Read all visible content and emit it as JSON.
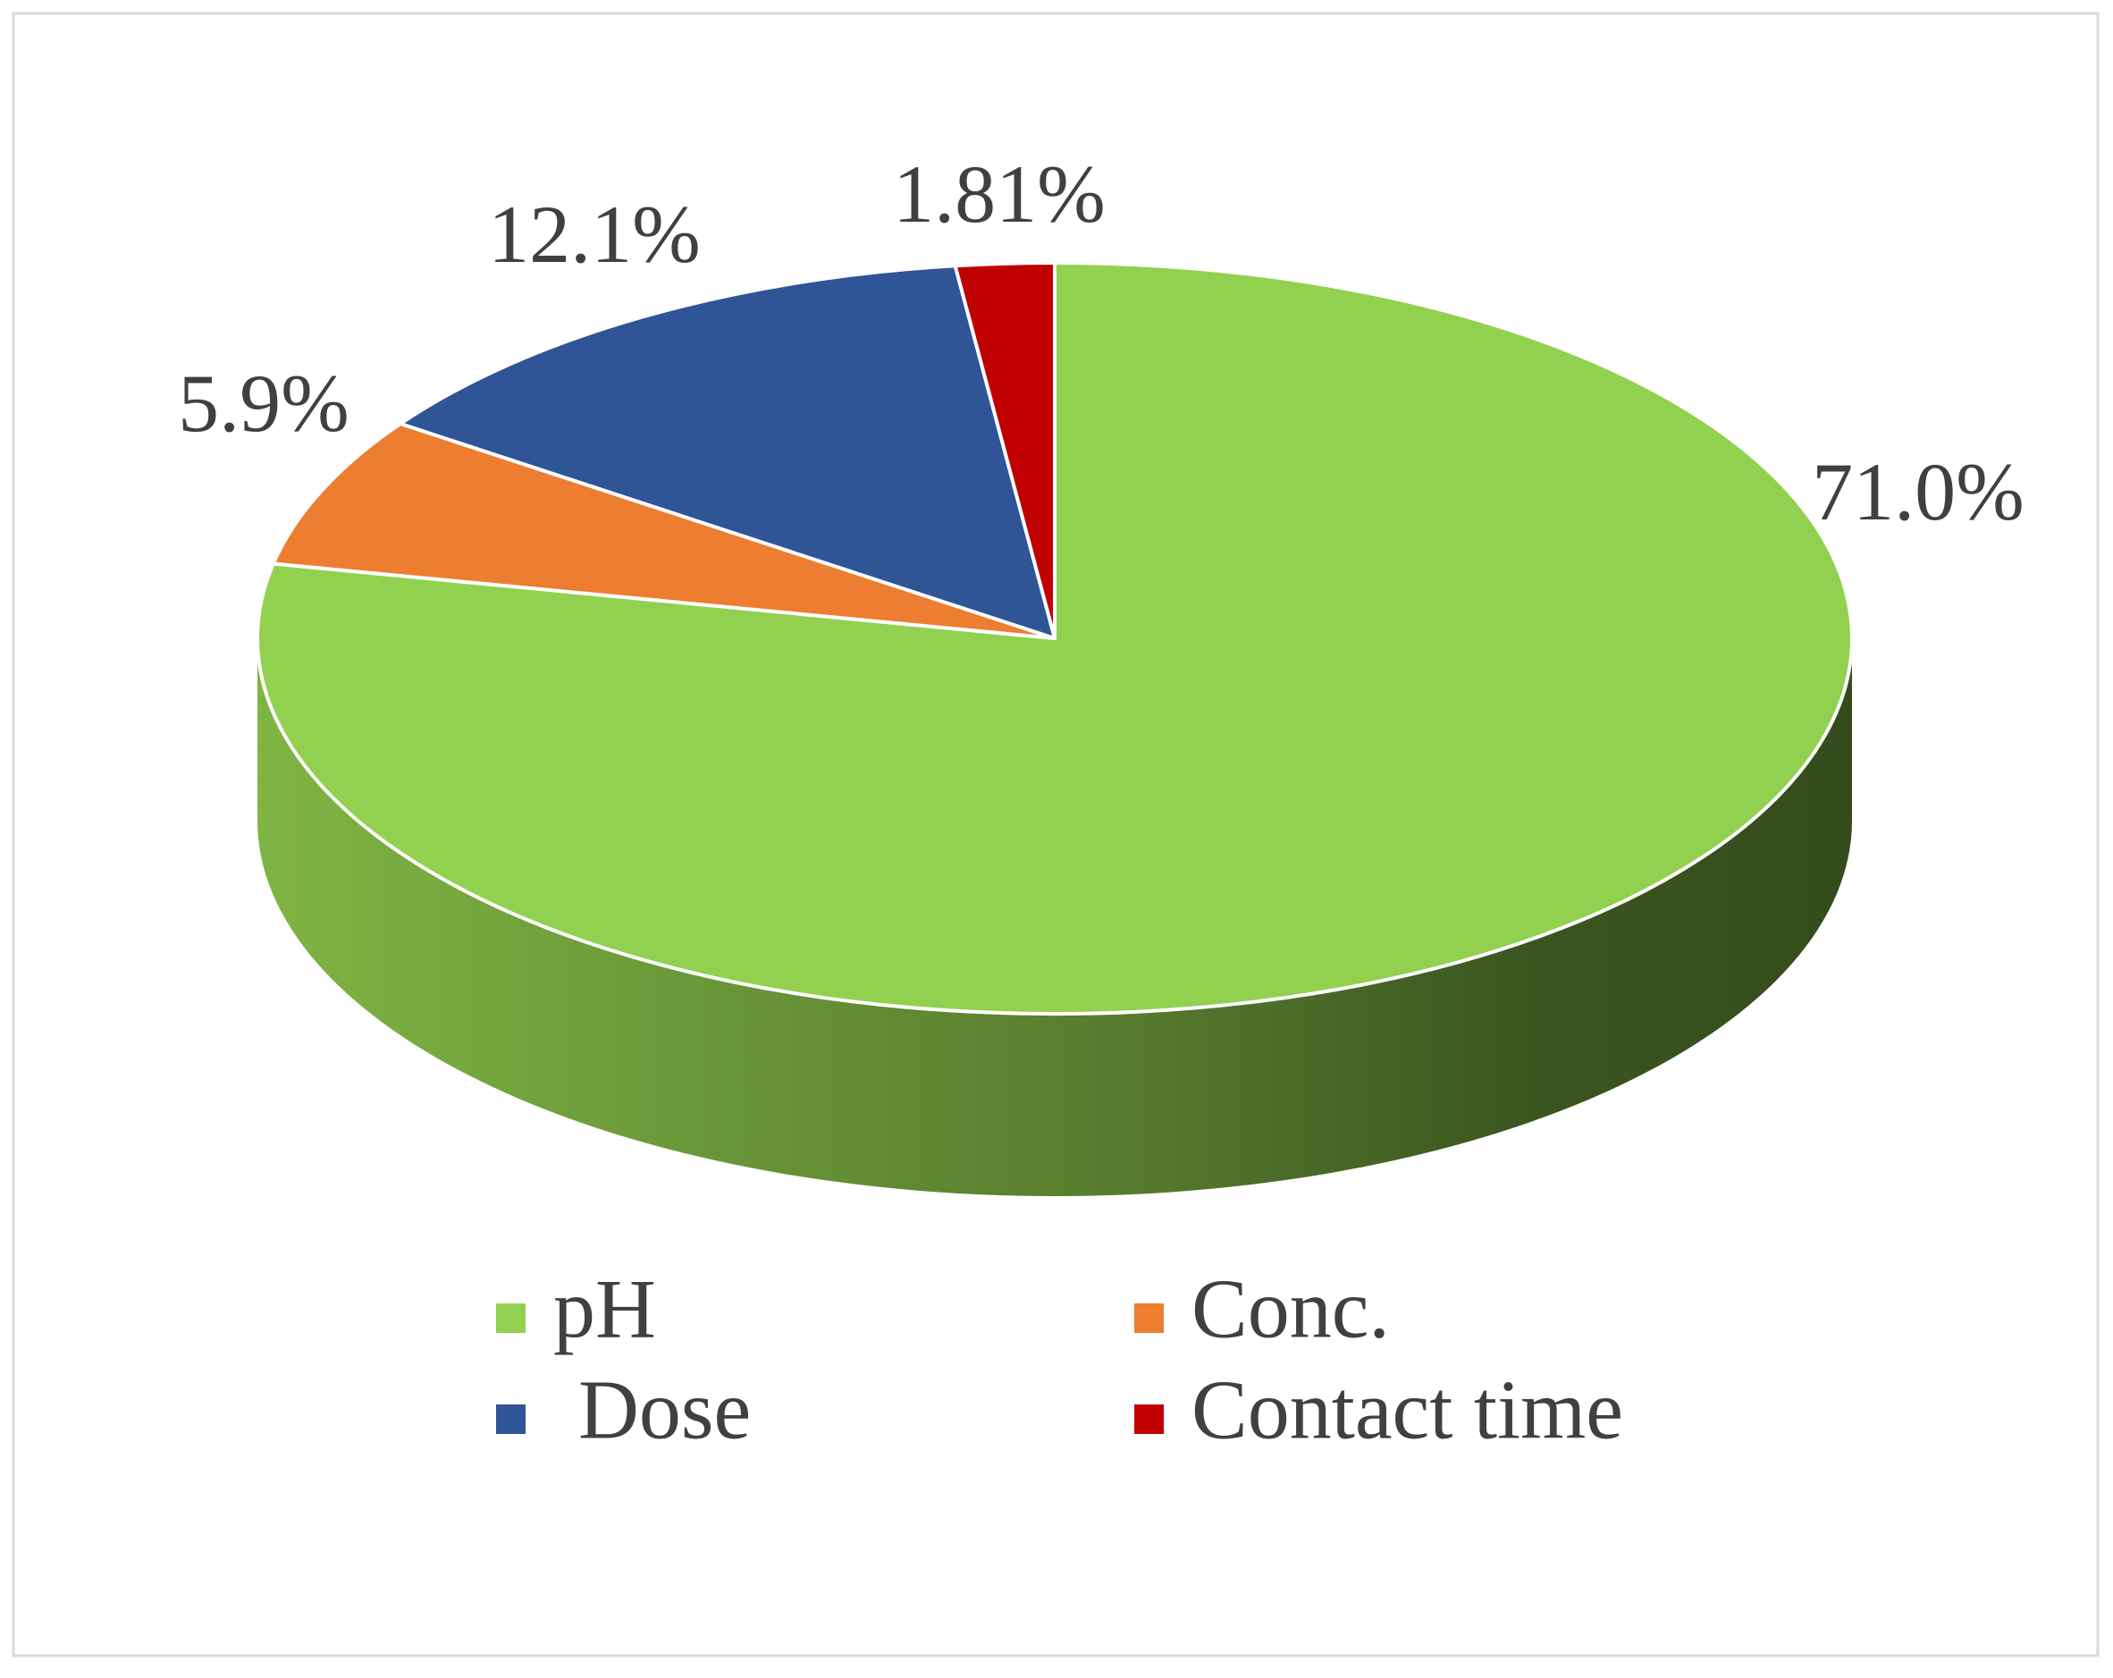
{
  "chart_data": {
    "type": "pie",
    "categories": [
      "pH",
      "Conc.",
      "Dose",
      "Contact time"
    ],
    "values": [
      71.0,
      5.9,
      12.1,
      1.81
    ],
    "value_labels": [
      "71.0%",
      "5.9%",
      "12.1%",
      "1.81%"
    ],
    "colors": [
      "#92d050",
      "#ed7d31",
      "#2f5597",
      "#c00000"
    ]
  }
}
